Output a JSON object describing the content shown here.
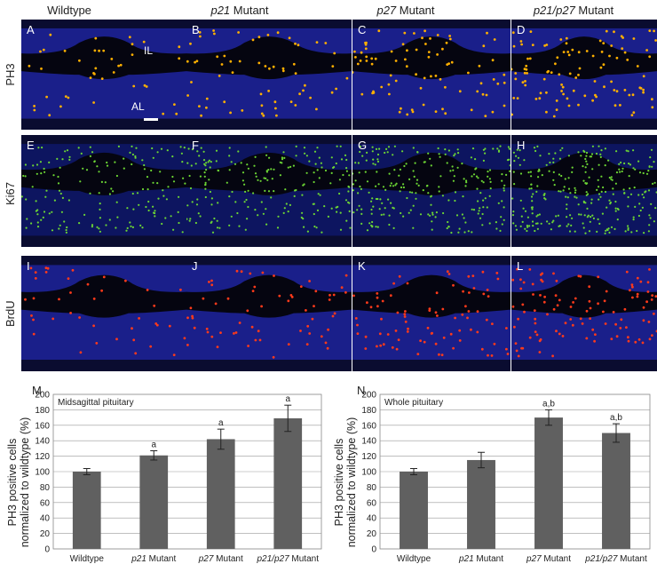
{
  "columns": [
    {
      "prefix": "",
      "italic": "",
      "suffix": "Wildtype"
    },
    {
      "prefix": "",
      "italic": "p21",
      "suffix": " Mutant"
    },
    {
      "prefix": "",
      "italic": "p27",
      "suffix": " Mutant"
    },
    {
      "prefix": "",
      "italic": "p21/p27",
      "suffix": " Mutant"
    }
  ],
  "rows": [
    "PH3",
    "Ki67",
    "BrdU"
  ],
  "panel_labels": [
    "A",
    "B",
    "C",
    "D",
    "E",
    "F",
    "G",
    "H",
    "I",
    "J",
    "K",
    "L"
  ],
  "annotations": {
    "il": "IL",
    "al": "AL"
  },
  "colors": {
    "background": "#1a1f8a",
    "lumen": "#050510",
    "ph3_dots": "#ffb000",
    "ki67_dots": "#6cd634",
    "brdu_dots": "#ff3a1a",
    "bar": "#606060"
  },
  "chart_data": [
    {
      "type": "bar",
      "panel_label": "M",
      "title": "Midsagittal pituitary",
      "ylabel": "PH3 positive cells normalized to wildtype (%)",
      "categories": [
        {
          "prefix": "",
          "italic": "",
          "suffix": "Wildtype"
        },
        {
          "prefix": "",
          "italic": "p21",
          "suffix": " Mutant"
        },
        {
          "prefix": "",
          "italic": "p27",
          "suffix": " Mutant"
        },
        {
          "prefix": "",
          "italic": "p21/p27",
          "suffix": " Mutant"
        }
      ],
      "values": [
        100,
        121,
        142,
        169
      ],
      "errors": [
        4,
        6,
        13,
        17
      ],
      "significance": [
        "",
        "a",
        "a",
        "a"
      ],
      "ylim": [
        0,
        200
      ],
      "yticks": [
        0,
        20,
        40,
        60,
        80,
        100,
        120,
        140,
        160,
        180,
        200
      ],
      "grid": true
    },
    {
      "type": "bar",
      "panel_label": "N",
      "title": "Whole pituitary",
      "ylabel": "PH3 positive cells normalized to wildtype (%)",
      "categories": [
        {
          "prefix": "",
          "italic": "",
          "suffix": "Wildtype"
        },
        {
          "prefix": "",
          "italic": "p21",
          "suffix": " Mutant"
        },
        {
          "prefix": "",
          "italic": "p27",
          "suffix": " Mutant"
        },
        {
          "prefix": "",
          "italic": "p21/p27",
          "suffix": " Mutant"
        }
      ],
      "values": [
        100,
        115,
        170,
        150
      ],
      "errors": [
        4,
        10,
        10,
        12
      ],
      "significance": [
        "",
        "",
        "a,b",
        "a,b"
      ],
      "ylim": [
        0,
        200
      ],
      "yticks": [
        0,
        20,
        40,
        60,
        80,
        100,
        120,
        140,
        160,
        180,
        200
      ],
      "grid": true
    }
  ]
}
